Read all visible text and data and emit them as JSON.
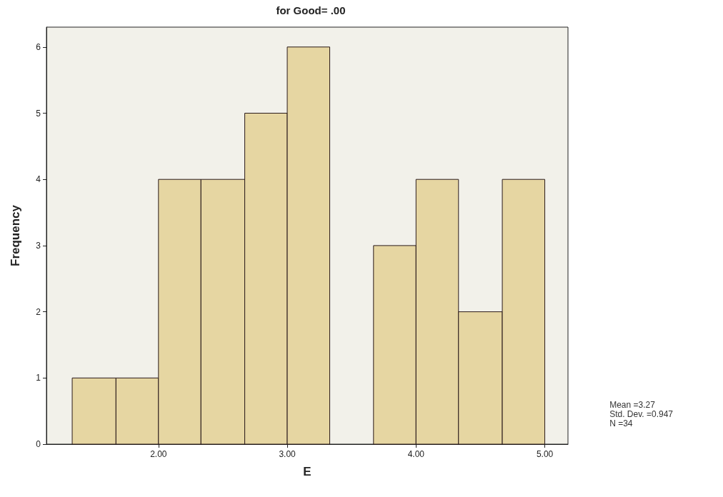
{
  "chart_data": {
    "type": "histogram",
    "title": "for Good= .00",
    "xlabel": "E",
    "ylabel": "Frequency",
    "bins": [
      1.33,
      1.67,
      2,
      2.33,
      2.67,
      3,
      3.33,
      3.67,
      4,
      4.33,
      4.67,
      5
    ],
    "values": [
      1,
      1,
      4,
      4,
      5,
      6,
      0,
      3,
      4,
      2,
      4
    ],
    "color": "#e6d6a2",
    "xlim": [
      1.13,
      5.18
    ],
    "xticks": [
      {
        "value": 2,
        "label": "2.00"
      },
      {
        "value": 3,
        "label": "3.00"
      },
      {
        "value": 4,
        "label": "4.00"
      },
      {
        "value": 5,
        "label": "5.00"
      }
    ],
    "ylim": [
      0,
      6.3
    ],
    "yticks": [
      0,
      1,
      2,
      3,
      4,
      5,
      6
    ],
    "grid": false,
    "annotations": [
      "Mean =3.27",
      "Std. Dev. =0.947",
      "N =34"
    ]
  }
}
